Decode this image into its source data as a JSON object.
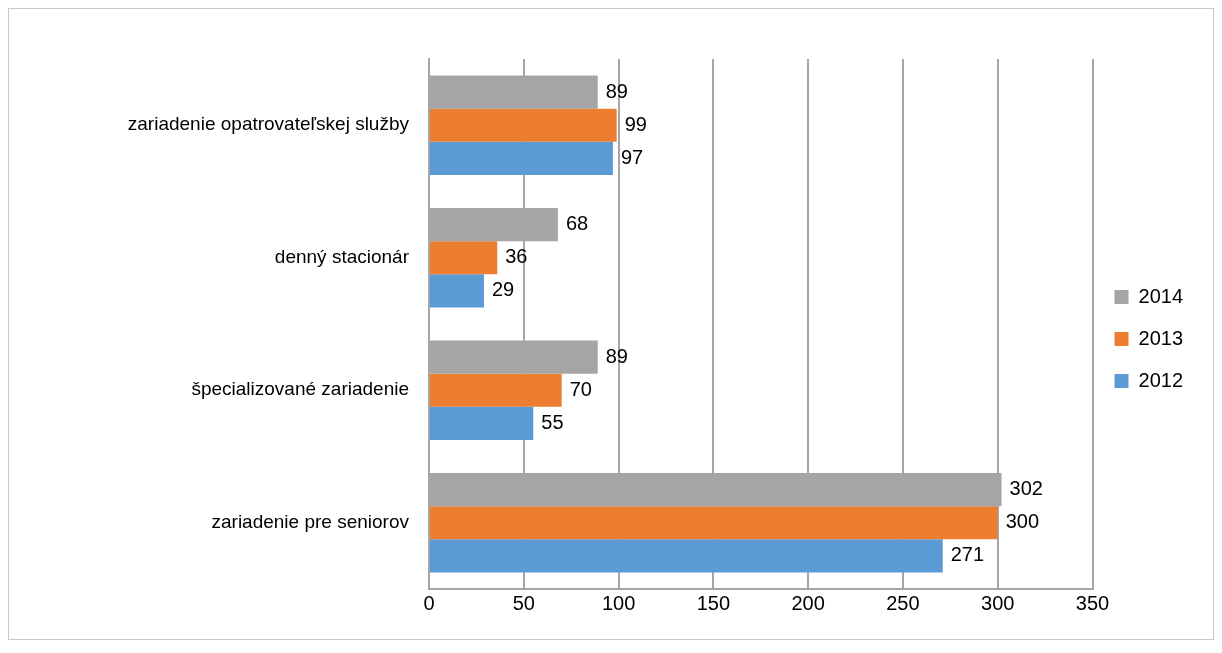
{
  "chart_data": {
    "type": "bar",
    "orientation": "horizontal",
    "categories": [
      "zariadenie opatrovateľskej služby",
      "denný stacionár",
      "špecializované zariadenie",
      "zariadenie pre seniorov"
    ],
    "series": [
      {
        "name": "2014",
        "color": "#a5a5a5",
        "values": [
          89,
          68,
          89,
          302
        ]
      },
      {
        "name": "2013",
        "color": "#ed7d31",
        "values": [
          99,
          36,
          70,
          300
        ]
      },
      {
        "name": "2012",
        "color": "#5b9bd5",
        "values": [
          97,
          29,
          55,
          271
        ]
      }
    ],
    "xlim": [
      0,
      350
    ],
    "xticks": [
      0,
      50,
      100,
      150,
      200,
      250,
      300,
      350
    ],
    "grid": "x",
    "legend": "right",
    "data_labels": true
  }
}
